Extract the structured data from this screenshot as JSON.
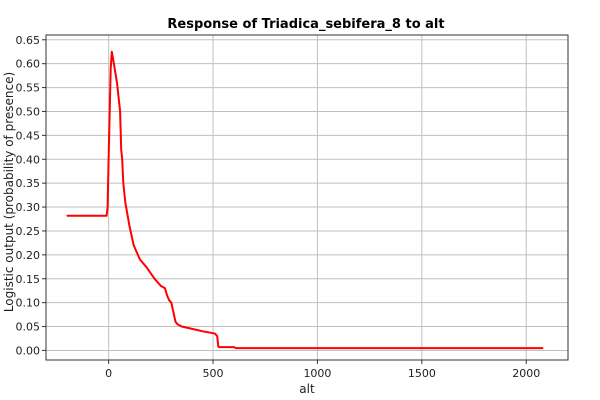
{
  "chart_data": {
    "type": "line",
    "title": "Response of Triadica_sebifera_8 to alt",
    "xlabel": "alt",
    "ylabel": "Logistic output (probability of presence)",
    "xlim": [
      -300,
      2200
    ],
    "ylim": [
      -0.02,
      0.66
    ],
    "x_ticks": [
      0,
      500,
      1000,
      1500,
      2000
    ],
    "y_ticks": [
      0.0,
      0.05,
      0.1,
      0.15,
      0.2,
      0.25,
      0.3,
      0.35,
      0.4,
      0.45,
      0.5,
      0.55,
      0.6,
      0.65
    ],
    "x_tick_labels": [
      "0",
      "500",
      "1000",
      "1500",
      "2000"
    ],
    "y_tick_labels": [
      "0.00",
      "0.05",
      "0.10",
      "0.15",
      "0.20",
      "0.25",
      "0.30",
      "0.35",
      "0.40",
      "0.45",
      "0.50",
      "0.55",
      "0.60",
      "0.65"
    ],
    "grid": true,
    "series": [
      {
        "name": "response",
        "color": "#ff0000",
        "x": [
          -200,
          -10,
          -5,
          0,
          5,
          10,
          15,
          25,
          40,
          55,
          60,
          65,
          70,
          80,
          100,
          120,
          130,
          150,
          180,
          220,
          250,
          270,
          280,
          290,
          300,
          310,
          320,
          330,
          350,
          400,
          450,
          500,
          510,
          520,
          525,
          530,
          600,
          610,
          2080
        ],
        "values": [
          0.282,
          0.282,
          0.3,
          0.4,
          0.5,
          0.59,
          0.625,
          0.6,
          0.56,
          0.5,
          0.42,
          0.4,
          0.35,
          0.31,
          0.26,
          0.22,
          0.21,
          0.19,
          0.175,
          0.15,
          0.135,
          0.13,
          0.115,
          0.105,
          0.1,
          0.08,
          0.06,
          0.055,
          0.05,
          0.045,
          0.04,
          0.036,
          0.035,
          0.03,
          0.008,
          0.007,
          0.007,
          0.005,
          0.005
        ]
      }
    ]
  }
}
